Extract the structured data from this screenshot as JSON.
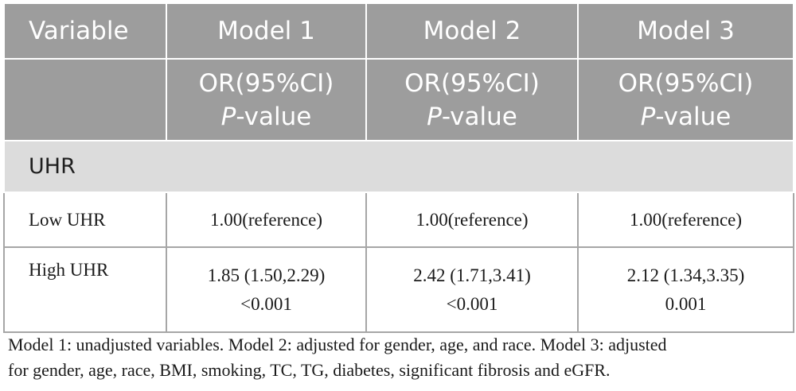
{
  "table": {
    "header": {
      "variable": "Variable",
      "models": [
        "Model 1",
        "Model 2",
        "Model 3"
      ]
    },
    "subheader": [
      {
        "line1": "OR(95%CI)",
        "p": "P",
        "rest": "-value"
      },
      {
        "line1": "OR(95%CI)",
        "p": "P",
        "rest": "-value"
      },
      {
        "line1": "OR(95%CI)",
        "p": "P",
        "rest": "-value"
      }
    ],
    "section": "UHR",
    "rows": [
      {
        "label": "Low UHR",
        "values": [
          {
            "or": "1.00(reference)",
            "p": ""
          },
          {
            "or": "1.00(reference)",
            "p": ""
          },
          {
            "or": "1.00(reference)",
            "p": ""
          }
        ]
      },
      {
        "label": "High UHR",
        "values": [
          {
            "or": "1.85 (1.50,2.29)",
            "p": "<0.001"
          },
          {
            "or": "2.42 (1.71,3.41)",
            "p": "<0.001"
          },
          {
            "or": "2.12 (1.34,3.35)",
            "p": "0.001"
          }
        ]
      }
    ]
  },
  "footnote": {
    "line1": "Model 1: unadjusted variables. Model 2: adjusted for gender, age, and race. Model 3: adjusted",
    "line2": "for gender, age, race, BMI, smoking, TC, TG, diabetes, significant fibrosis and eGFR."
  },
  "colors": {
    "header_bg": "#9d9d9d",
    "section_bg": "#dcdcdc",
    "border": "#a6a6a6"
  }
}
